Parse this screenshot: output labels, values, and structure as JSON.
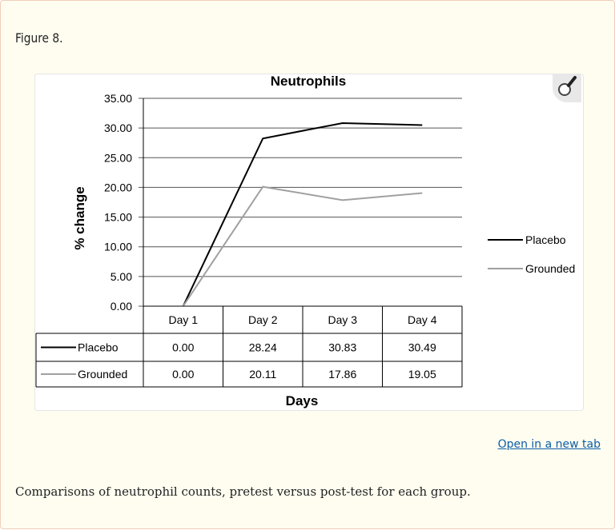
{
  "figure_label": "Figure 8.",
  "open_link": "Open in a new tab",
  "caption": "Comparisons of neutrophil counts, pretest versus post-test for each group.",
  "icons": {
    "zoom": "magnifier-icon"
  },
  "chart_data": {
    "type": "line",
    "title": "Neutrophils",
    "xlabel": "Days",
    "ylabel": "% change",
    "categories": [
      "Day 1",
      "Day 2",
      "Day 3",
      "Day 4"
    ],
    "ylim": [
      0,
      35
    ],
    "yticks": [
      "0.00",
      "5.00",
      "10.00",
      "15.00",
      "20.00",
      "25.00",
      "30.00",
      "35.00"
    ],
    "grid": true,
    "legend": "right",
    "series": [
      {
        "name": "Placebo",
        "values": [
          0.0,
          28.24,
          30.83,
          30.49
        ],
        "labels": [
          "0.00",
          "28.24",
          "30.83",
          "30.49"
        ],
        "color": "#000000"
      },
      {
        "name": "Grounded",
        "values": [
          0.0,
          20.11,
          17.86,
          19.05
        ],
        "labels": [
          "0.00",
          "20.11",
          "17.86",
          "19.05"
        ],
        "color": "#a0a0a0"
      }
    ]
  }
}
